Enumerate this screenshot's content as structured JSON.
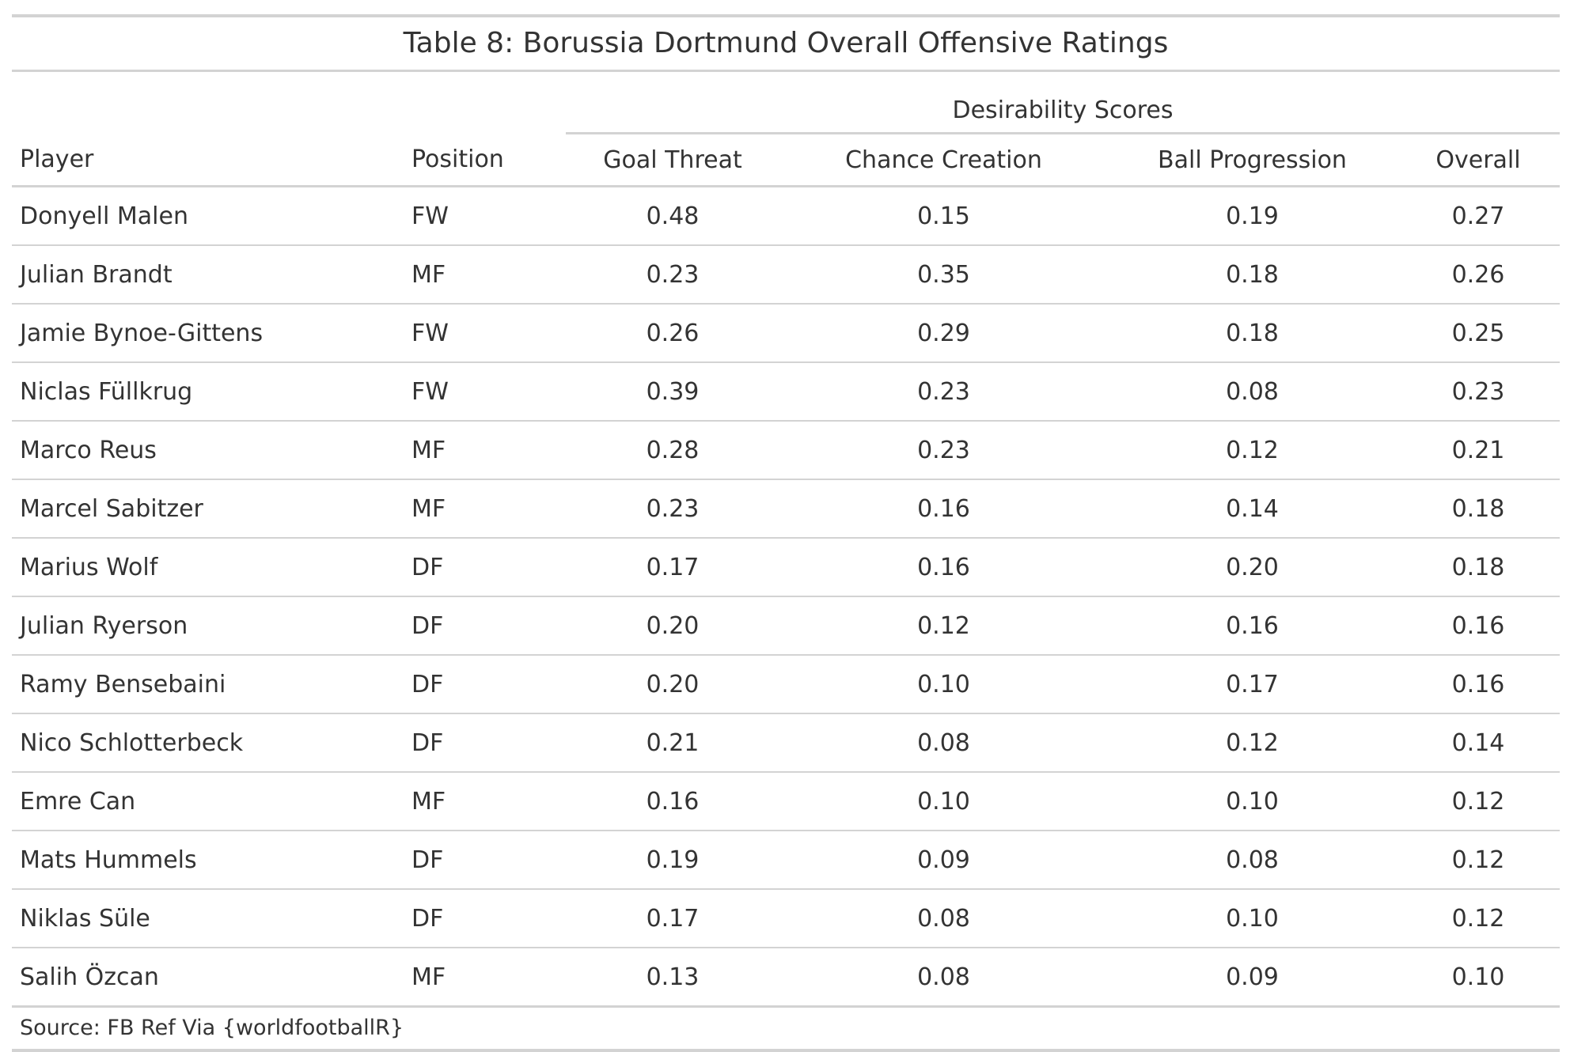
{
  "title": "Table 8: Borussia Dortmund Overall Offensive Ratings",
  "spanner": "Desirability Scores",
  "columns": {
    "player": "Player",
    "position": "Position",
    "goal_threat": "Goal Threat",
    "chance_creation": "Chance Creation",
    "ball_progression": "Ball Progression",
    "overall": "Overall"
  },
  "rows": [
    {
      "player": "Donyell Malen",
      "position": "FW",
      "goal_threat": "0.48",
      "chance_creation": "0.15",
      "ball_progression": "0.19",
      "overall": "0.27"
    },
    {
      "player": "Julian Brandt",
      "position": "MF",
      "goal_threat": "0.23",
      "chance_creation": "0.35",
      "ball_progression": "0.18",
      "overall": "0.26"
    },
    {
      "player": "Jamie Bynoe-Gittens",
      "position": "FW",
      "goal_threat": "0.26",
      "chance_creation": "0.29",
      "ball_progression": "0.18",
      "overall": "0.25"
    },
    {
      "player": "Niclas Füllkrug",
      "position": "FW",
      "goal_threat": "0.39",
      "chance_creation": "0.23",
      "ball_progression": "0.08",
      "overall": "0.23"
    },
    {
      "player": "Marco Reus",
      "position": "MF",
      "goal_threat": "0.28",
      "chance_creation": "0.23",
      "ball_progression": "0.12",
      "overall": "0.21"
    },
    {
      "player": "Marcel Sabitzer",
      "position": "MF",
      "goal_threat": "0.23",
      "chance_creation": "0.16",
      "ball_progression": "0.14",
      "overall": "0.18"
    },
    {
      "player": "Marius Wolf",
      "position": "DF",
      "goal_threat": "0.17",
      "chance_creation": "0.16",
      "ball_progression": "0.20",
      "overall": "0.18"
    },
    {
      "player": "Julian Ryerson",
      "position": "DF",
      "goal_threat": "0.20",
      "chance_creation": "0.12",
      "ball_progression": "0.16",
      "overall": "0.16"
    },
    {
      "player": "Ramy Bensebaini",
      "position": "DF",
      "goal_threat": "0.20",
      "chance_creation": "0.10",
      "ball_progression": "0.17",
      "overall": "0.16"
    },
    {
      "player": "Nico Schlotterbeck",
      "position": "DF",
      "goal_threat": "0.21",
      "chance_creation": "0.08",
      "ball_progression": "0.12",
      "overall": "0.14"
    },
    {
      "player": "Emre Can",
      "position": "MF",
      "goal_threat": "0.16",
      "chance_creation": "0.10",
      "ball_progression": "0.10",
      "overall": "0.12"
    },
    {
      "player": "Mats Hummels",
      "position": "DF",
      "goal_threat": "0.19",
      "chance_creation": "0.09",
      "ball_progression": "0.08",
      "overall": "0.12"
    },
    {
      "player": "Niklas Süle",
      "position": "DF",
      "goal_threat": "0.17",
      "chance_creation": "0.08",
      "ball_progression": "0.10",
      "overall": "0.12"
    },
    {
      "player": "Salih Özcan",
      "position": "MF",
      "goal_threat": "0.13",
      "chance_creation": "0.08",
      "ball_progression": "0.09",
      "overall": "0.10"
    }
  ],
  "source": "Source: FB Ref Via {worldfootballR}"
}
